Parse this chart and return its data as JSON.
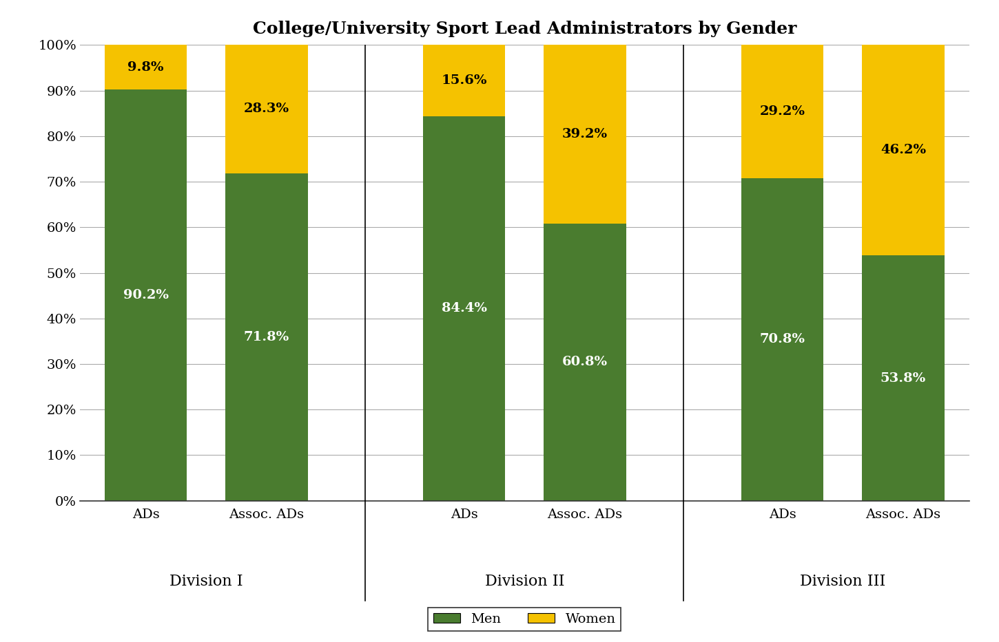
{
  "title": "College/University Sport Lead Administrators by Gender",
  "categories": [
    "ADs",
    "Assoc. ADs",
    "ADs",
    "Assoc. ADs",
    "ADs",
    "Assoc. ADs"
  ],
  "group_labels": [
    "Division I",
    "Division II",
    "Division III"
  ],
  "men_values": [
    90.2,
    71.8,
    84.4,
    60.8,
    70.8,
    53.8
  ],
  "women_values": [
    9.8,
    28.3,
    15.6,
    39.2,
    29.2,
    46.2
  ],
  "men_color": "#4a7c2f",
  "women_color": "#f5c200",
  "men_label": "Men",
  "women_label": "Women",
  "men_text_color": "#ffffff",
  "women_text_color": "#000000",
  "ylim": [
    0,
    100
  ],
  "ytick_labels": [
    "0%",
    "10%",
    "20%",
    "30%",
    "40%",
    "50%",
    "60%",
    "70%",
    "80%",
    "90%",
    "100%"
  ],
  "ytick_values": [
    0,
    10,
    20,
    30,
    40,
    50,
    60,
    70,
    80,
    90,
    100
  ],
  "bar_width": 0.75,
  "title_fontsize": 18,
  "label_fontsize": 14,
  "tick_fontsize": 14,
  "annotation_fontsize": 14,
  "group_label_fontsize": 16,
  "legend_fontsize": 14,
  "background_color": "#ffffff",
  "grid_color": "#aaaaaa"
}
